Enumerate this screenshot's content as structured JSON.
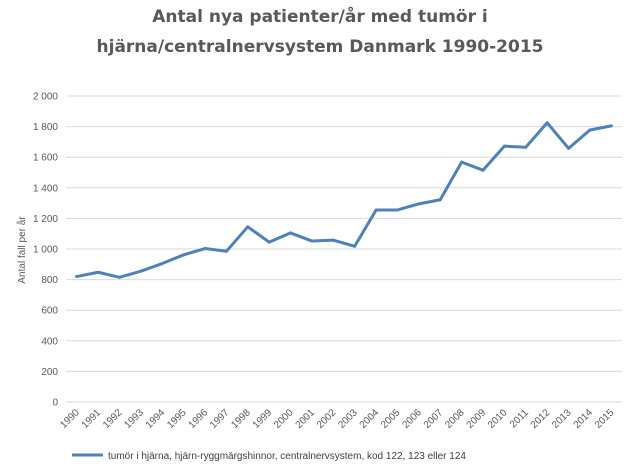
{
  "chart_data": {
    "type": "line",
    "title_lines": [
      "Antal nya patienter/år med tumör i",
      "hjärna/centralnervsystem Danmark 1990-2015"
    ],
    "xlabel": "",
    "ylabel": "Antal fall per år",
    "ylim": [
      0,
      2000
    ],
    "y_ticks": [
      0,
      200,
      400,
      600,
      800,
      1000,
      1200,
      1400,
      1600,
      1800,
      2000
    ],
    "y_tick_labels": [
      "0",
      "200",
      "400",
      "600",
      "800",
      "1 000",
      "1 200",
      "1 400",
      "1 600",
      "1 800",
      "2 000"
    ],
    "grid": true,
    "legend_position": "bottom",
    "categories": [
      "1990",
      "1991",
      "1992",
      "1993",
      "1994",
      "1995",
      "1996",
      "1997",
      "1998",
      "1999",
      "2000",
      "2001",
      "2002",
      "2003",
      "2004",
      "2005",
      "2006",
      "2007",
      "2008",
      "2009",
      "2010",
      "2011",
      "2012",
      "2013",
      "2014",
      "2015"
    ],
    "series": [
      {
        "name": "tumör i hjärna, hjärn-ryggmärgshinnor, centralnervsystem, kod 122, 123 eller 124",
        "color": "#4f81bd",
        "values": [
          820,
          848,
          815,
          855,
          905,
          962,
          1003,
          985,
          1145,
          1045,
          1105,
          1052,
          1058,
          1018,
          1255,
          1255,
          1295,
          1322,
          1568,
          1515,
          1672,
          1665,
          1825,
          1658,
          1778,
          1805
        ]
      }
    ]
  }
}
